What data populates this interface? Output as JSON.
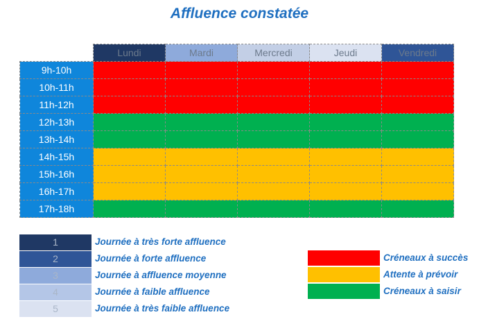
{
  "title": "Affluence constatée",
  "days": [
    {
      "label": "Lundi",
      "color": "#1f3864"
    },
    {
      "label": "Mardi",
      "color": "#8eaadb"
    },
    {
      "label": "Mercredi",
      "color": "#c3cfe6"
    },
    {
      "label": "Jeudi",
      "color": "#dbe2f1"
    },
    {
      "label": "Vendredi",
      "color": "#2f5597"
    }
  ],
  "slots": [
    "9h-10h",
    "10h-11h",
    "11h-12h",
    "12h-13h",
    "13h-14h",
    "14h-15h",
    "15h-16h",
    "16h-17h",
    "17h-18h"
  ],
  "slot_status": [
    "succes",
    "succes",
    "succes",
    "saisir",
    "saisir",
    "prevoir",
    "prevoir",
    "prevoir",
    "saisir"
  ],
  "status_colors": {
    "succes": "#ff0000",
    "prevoir": "#ffc000",
    "saisir": "#00b050"
  },
  "legend_days": [
    {
      "number": "1",
      "label": "Journée à très forte affluence",
      "color": "#1f3864"
    },
    {
      "number": "2",
      "label": "Journée à forte affluence",
      "color": "#2f5597"
    },
    {
      "number": "3",
      "label": "Journée à affluence moyenne",
      "color": "#8eaadb"
    },
    {
      "number": "4",
      "label": "Journée à faible affluence",
      "color": "#b4c6e7"
    },
    {
      "number": "5",
      "label": "Journée à très faible affluence",
      "color": "#dbe2f1"
    }
  ],
  "legend_status": [
    {
      "label": "Créneaux à succès",
      "color": "#ff0000"
    },
    {
      "label": "Attente à prévoir",
      "color": "#ffc000"
    },
    {
      "label": "Créneaux à saisir",
      "color": "#00b050"
    }
  ]
}
